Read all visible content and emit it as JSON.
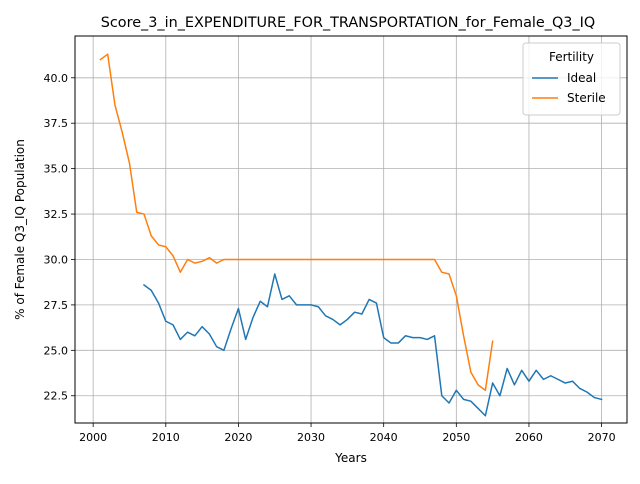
{
  "chart_data": {
    "type": "line",
    "title": "Score_3_in_EXPENDITURE_FOR_TRANSPORTATION_for_Female_Q3_IQ",
    "xlabel": "Years",
    "ylabel": "% of Female Q3_IQ Population",
    "xlim": [
      1997.5,
      2073.5
    ],
    "ylim": [
      21.0,
      42.3
    ],
    "xticks": [
      2000,
      2010,
      2020,
      2030,
      2040,
      2050,
      2060,
      2070
    ],
    "yticks": [
      22.5,
      25.0,
      27.5,
      30.0,
      32.5,
      35.0,
      37.5,
      40.0
    ],
    "ytick_labels": [
      "22.5",
      "25.0",
      "27.5",
      "30.0",
      "32.5",
      "35.0",
      "37.5",
      "40.0"
    ],
    "grid": true,
    "legend": {
      "title": "Fertility",
      "placement": "top-right"
    },
    "series": [
      {
        "name": "Ideal",
        "color": "#1f77b4",
        "x": [
          2007,
          2008,
          2009,
          2010,
          2011,
          2012,
          2013,
          2014,
          2015,
          2016,
          2017,
          2018,
          2019,
          2020,
          2021,
          2022,
          2023,
          2024,
          2025,
          2026,
          2027,
          2028,
          2029,
          2030,
          2031,
          2032,
          2033,
          2034,
          2035,
          2036,
          2037,
          2038,
          2039,
          2040,
          2041,
          2042,
          2043,
          2044,
          2045,
          2046,
          2047,
          2048,
          2049,
          2050,
          2051,
          2052,
          2053,
          2054,
          2055,
          2056,
          2057,
          2058,
          2059,
          2060,
          2061,
          2062,
          2063,
          2064,
          2065,
          2066,
          2067,
          2068,
          2069,
          2070
        ],
        "y": [
          28.6,
          28.3,
          27.6,
          26.6,
          26.4,
          25.6,
          26.0,
          25.8,
          26.3,
          25.9,
          25.2,
          25.0,
          26.2,
          27.3,
          25.6,
          26.8,
          27.7,
          27.4,
          29.2,
          27.8,
          28.0,
          27.5,
          27.5,
          27.5,
          27.4,
          26.9,
          26.7,
          26.4,
          26.7,
          27.1,
          27.0,
          27.8,
          27.6,
          25.7,
          25.4,
          25.4,
          25.8,
          25.7,
          25.7,
          25.6,
          25.8,
          22.5,
          22.1,
          22.8,
          22.3,
          22.2,
          21.8,
          21.4,
          23.2,
          22.5,
          24.0,
          23.1,
          23.9,
          23.3,
          23.9,
          23.4,
          23.6,
          23.4,
          23.2,
          23.3,
          22.9,
          22.7,
          22.4,
          22.3
        ]
      },
      {
        "name": "Sterile",
        "color": "#ff7f0e",
        "x": [
          2001,
          2002,
          2003,
          2004,
          2005,
          2006,
          2007,
          2008,
          2009,
          2010,
          2011,
          2012,
          2013,
          2014,
          2015,
          2016,
          2017,
          2018,
          2019,
          2020,
          2021,
          2022,
          2023,
          2024,
          2025,
          2026,
          2027,
          2028,
          2029,
          2030,
          2031,
          2032,
          2033,
          2034,
          2035,
          2036,
          2037,
          2038,
          2039,
          2040,
          2041,
          2042,
          2043,
          2044,
          2045,
          2046,
          2047,
          2048,
          2049,
          2050,
          2051,
          2052,
          2053,
          2054,
          2055
        ],
        "y": [
          41.0,
          41.3,
          38.5,
          37.0,
          35.3,
          32.6,
          32.5,
          31.3,
          30.8,
          30.7,
          30.2,
          29.3,
          30.0,
          29.8,
          29.9,
          30.1,
          29.8,
          30.0,
          30.0,
          30.0,
          30.0,
          30.0,
          30.0,
          30.0,
          30.0,
          30.0,
          30.0,
          30.0,
          30.0,
          30.0,
          30.0,
          30.0,
          30.0,
          30.0,
          30.0,
          30.0,
          30.0,
          30.0,
          30.0,
          30.0,
          30.0,
          30.0,
          30.0,
          30.0,
          30.0,
          30.0,
          30.0,
          29.3,
          29.2,
          28.0,
          25.8,
          23.8,
          23.1,
          22.8,
          25.5
        ]
      }
    ]
  }
}
